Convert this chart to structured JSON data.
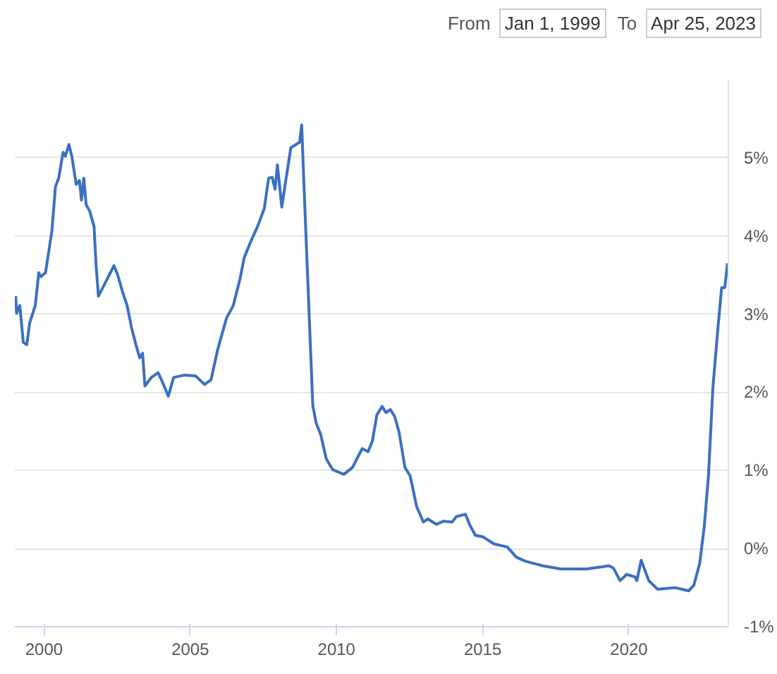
{
  "chart_data": {
    "type": "line",
    "annotations": [
      "From",
      "Jan 1, 1999",
      "To",
      "Apr 25, 2023"
    ],
    "x": [
      1999.03,
      1999.06,
      1999.17,
      1999.29,
      1999.41,
      1999.51,
      1999.7,
      1999.82,
      1999.89,
      2000.05,
      2000.27,
      2000.39,
      2000.5,
      2000.65,
      2000.73,
      2000.85,
      2000.95,
      2001.1,
      2001.21,
      2001.28,
      2001.36,
      2001.44,
      2001.56,
      2001.71,
      2001.78,
      2001.86,
      2002.01,
      2002.24,
      2002.39,
      2002.51,
      2002.69,
      2002.84,
      2002.99,
      2003.14,
      2003.27,
      2003.37,
      2003.45,
      2003.67,
      2003.9,
      2004.05,
      2004.25,
      2004.43,
      2004.81,
      2005.18,
      2005.49,
      2005.71,
      2005.94,
      2006.24,
      2006.47,
      2006.7,
      2006.85,
      2007.07,
      2007.3,
      2007.53,
      2007.68,
      2007.8,
      2007.9,
      2007.98,
      2008.13,
      2008.29,
      2008.44,
      2008.74,
      2008.81,
      2008.89,
      2009.04,
      2009.19,
      2009.31,
      2009.46,
      2009.65,
      2009.87,
      2010.25,
      2010.55,
      2010.7,
      2010.88,
      2011.08,
      2011.23,
      2011.38,
      2011.56,
      2011.69,
      2011.84,
      2011.99,
      2012.14,
      2012.34,
      2012.52,
      2012.74,
      2012.97,
      2013.12,
      2013.42,
      2013.65,
      2013.95,
      2014.1,
      2014.41,
      2014.56,
      2014.75,
      2015.01,
      2015.39,
      2015.84,
      2016.15,
      2016.45,
      2017.05,
      2017.66,
      2018.56,
      2019.32,
      2019.47,
      2019.7,
      2019.92,
      2020.2,
      2020.27,
      2020.42,
      2020.68,
      2020.98,
      2021.59,
      2022.04,
      2022.22,
      2022.42,
      2022.57,
      2022.72,
      2022.87,
      2023.02,
      2023.17,
      2023.28,
      2023.37
    ],
    "series": [
      {
        "color": "#3a70c0",
        "values": [
          3.23,
          3.01,
          3.11,
          2.64,
          2.61,
          2.89,
          3.11,
          3.53,
          3.48,
          3.53,
          4.07,
          4.63,
          4.74,
          5.07,
          5.02,
          5.17,
          5.02,
          4.66,
          4.71,
          4.46,
          4.74,
          4.4,
          4.32,
          4.12,
          3.62,
          3.23,
          3.34,
          3.51,
          3.62,
          3.51,
          3.28,
          3.11,
          2.83,
          2.61,
          2.44,
          2.5,
          2.08,
          2.19,
          2.25,
          2.13,
          1.95,
          2.19,
          2.22,
          2.21,
          2.1,
          2.16,
          2.55,
          2.95,
          3.11,
          3.45,
          3.73,
          3.93,
          4.12,
          4.35,
          4.74,
          4.75,
          4.6,
          4.91,
          4.37,
          4.77,
          5.13,
          5.2,
          5.42,
          4.63,
          3.23,
          1.83,
          1.6,
          1.46,
          1.15,
          1.01,
          0.95,
          1.04,
          1.15,
          1.28,
          1.24,
          1.38,
          1.71,
          1.82,
          1.74,
          1.78,
          1.69,
          1.49,
          1.04,
          0.93,
          0.54,
          0.34,
          0.38,
          0.31,
          0.35,
          0.34,
          0.41,
          0.44,
          0.3,
          0.17,
          0.15,
          0.06,
          0.02,
          -0.11,
          -0.16,
          -0.22,
          -0.26,
          -0.26,
          -0.22,
          -0.25,
          -0.41,
          -0.33,
          -0.36,
          -0.41,
          -0.15,
          -0.41,
          -0.52,
          -0.5,
          -0.54,
          -0.47,
          -0.19,
          0.26,
          0.93,
          2.05,
          2.72,
          3.34,
          3.34,
          3.65
        ]
      }
    ],
    "xlim": [
      1999.0,
      2023.4
    ],
    "ylim": [
      -1.0,
      6.0
    ],
    "xticks": [
      2000,
      2005,
      2010,
      2015,
      2020
    ],
    "yticks": [
      {
        "value": -1,
        "label": "-1%"
      },
      {
        "value": 0,
        "label": "0%"
      },
      {
        "value": 1,
        "label": "1%"
      },
      {
        "value": 2,
        "label": "2%"
      },
      {
        "value": 3,
        "label": "3%"
      },
      {
        "value": 4,
        "label": "4%"
      },
      {
        "value": 5,
        "label": "5%"
      }
    ],
    "grid": "y",
    "marker": "none",
    "line_style": "solid"
  }
}
